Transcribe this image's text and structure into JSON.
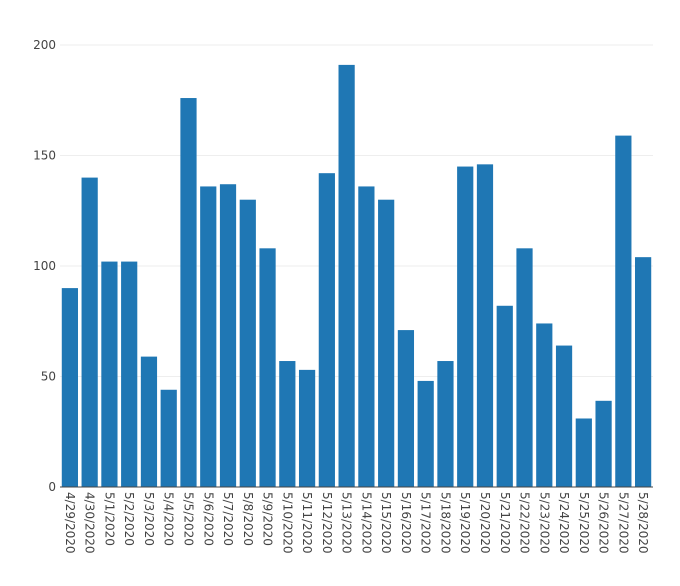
{
  "chart_data": {
    "type": "bar",
    "title": "",
    "xlabel": "",
    "ylabel": "",
    "ylim": [
      0,
      200
    ],
    "yticks": [
      0,
      50,
      100,
      150,
      200
    ],
    "grid": true,
    "bar_color": "#1f77b4",
    "grid_color": "#eeeeee",
    "categories": [
      "4/29/2020",
      "4/30/2020",
      "5/1/2020",
      "5/2/2020",
      "5/3/2020",
      "5/4/2020",
      "5/5/2020",
      "5/6/2020",
      "5/7/2020",
      "5/8/2020",
      "5/9/2020",
      "5/10/2020",
      "5/11/2020",
      "5/12/2020",
      "5/13/2020",
      "5/14/2020",
      "5/15/2020",
      "5/16/2020",
      "5/17/2020",
      "5/18/2020",
      "5/19/2020",
      "5/20/2020",
      "5/21/2020",
      "5/22/2020",
      "5/23/2020",
      "5/24/2020",
      "5/25/2020",
      "5/26/2020",
      "5/27/2020",
      "5/28/2020"
    ],
    "values": [
      90,
      140,
      102,
      102,
      59,
      44,
      176,
      136,
      137,
      130,
      108,
      57,
      53,
      142,
      191,
      136,
      130,
      71,
      48,
      57,
      145,
      146,
      82,
      108,
      74,
      64,
      31,
      39,
      159,
      104
    ]
  }
}
